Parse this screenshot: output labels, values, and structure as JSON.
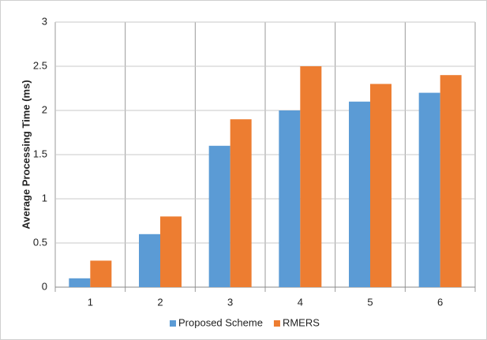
{
  "chart_data": {
    "type": "bar",
    "y_label": "Average Processing Time (ms)",
    "categories": [
      "1",
      "2",
      "3",
      "4",
      "5",
      "6"
    ],
    "series": [
      {
        "name": "Proposed Scheme",
        "color": "#5b9bd5",
        "values": [
          0.1,
          0.6,
          1.6,
          2.0,
          2.1,
          2.2
        ]
      },
      {
        "name": "RMERS",
        "color": "#ed7d31",
        "values": [
          0.3,
          0.8,
          1.9,
          2.5,
          2.3,
          2.4
        ]
      }
    ],
    "ylim": [
      0,
      3
    ],
    "yticks": [
      0,
      0.5,
      1,
      1.5,
      2,
      2.5,
      3
    ],
    "grid": true,
    "legend": "bottom"
  }
}
